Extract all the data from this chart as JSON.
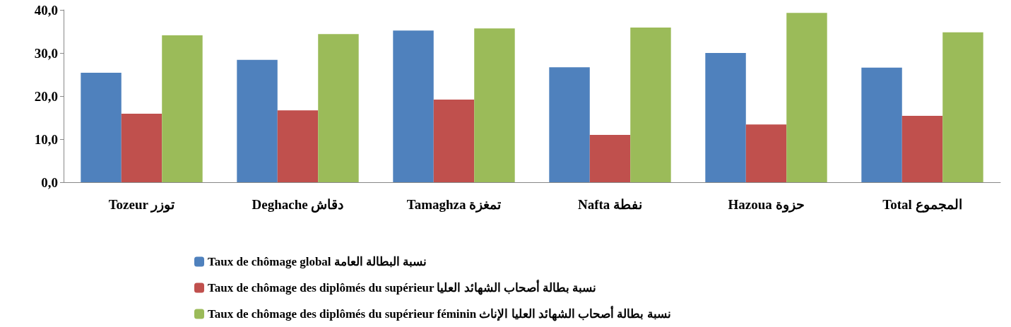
{
  "chart_data": {
    "type": "bar",
    "categories": [
      "Tozeur توزر",
      "Deghache دقاش",
      "Tamaghza تمغزة",
      "Nafta نفطة",
      "Hazoua حزوة",
      "Total المجموع"
    ],
    "series": [
      {
        "name": "Taux de chômage global نسبة البطالة العامة",
        "color": "#4f81bd",
        "values": [
          25.4,
          28.4,
          35.2,
          26.7,
          30.0,
          26.6
        ]
      },
      {
        "name": "Taux de chômage des diplômés du supérieur نسبة بطالة أصحاب الشهائد العليا",
        "color": "#c0504d",
        "values": [
          15.9,
          16.7,
          19.2,
          11.0,
          13.4,
          15.4
        ]
      },
      {
        "name": "Taux de chômage des diplômés du supérieur féminin نسبة بطالة أصحاب الشهائد العليا الإناث",
        "color": "#9bbb59",
        "values": [
          34.1,
          34.4,
          35.7,
          35.9,
          39.3,
          34.8
        ]
      }
    ],
    "ylim": [
      0,
      40
    ],
    "yticks": [
      {
        "value": 0,
        "label": "0,0"
      },
      {
        "value": 10,
        "label": "10,0"
      },
      {
        "value": 20,
        "label": "20,0"
      },
      {
        "value": 30,
        "label": "30,0"
      },
      {
        "value": 40,
        "label": "40,0"
      }
    ],
    "grid": false,
    "legend": "bottom"
  }
}
